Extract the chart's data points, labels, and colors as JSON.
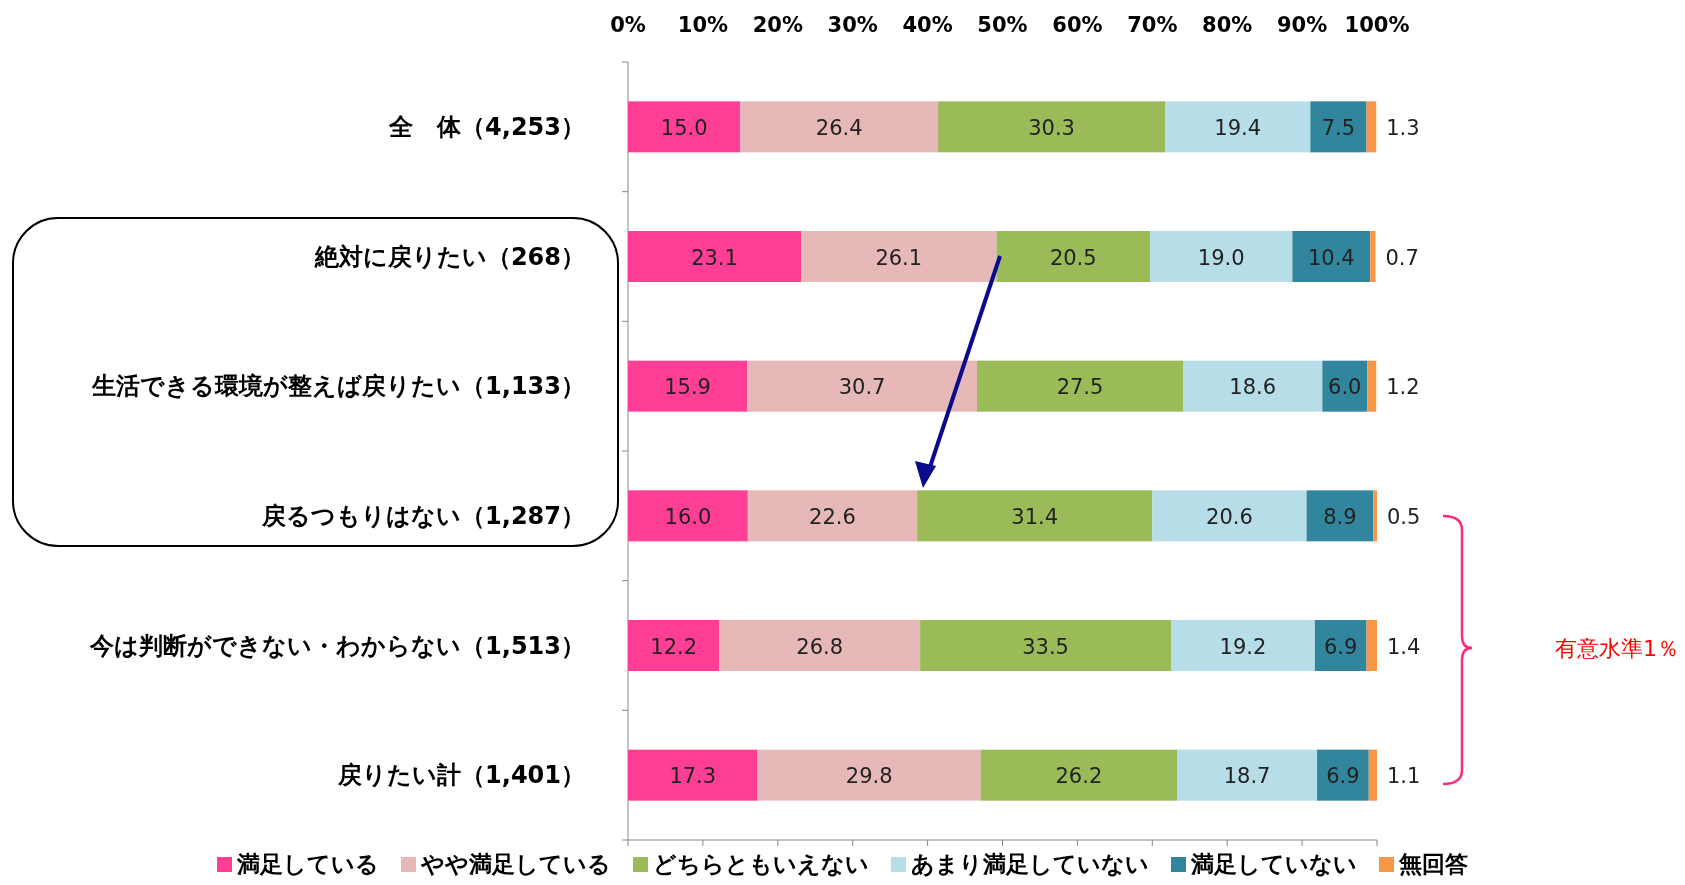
{
  "chart_data": {
    "type": "bar",
    "orientation": "horizontal",
    "stacked": true,
    "data_labels": true,
    "legend": "bottom",
    "grid": false,
    "categories": [
      "全　体（4,253）",
      "絶対に戻りたい（268）",
      "生活できる環境が整えば戻りたい（1,133）",
      "戻るつもりはない（1,287）",
      "今は判断ができない・わからない（1,513）",
      "戻りたい計（1,401）"
    ],
    "xlim": [
      0,
      100
    ],
    "xticks": [
      {
        "value": 0,
        "label": "0%"
      },
      {
        "value": 10,
        "label": "10%"
      },
      {
        "value": 20,
        "label": "20%"
      },
      {
        "value": 30,
        "label": "30%"
      },
      {
        "value": 40,
        "label": "40%"
      },
      {
        "value": 50,
        "label": "50%"
      },
      {
        "value": 60,
        "label": "60%"
      },
      {
        "value": 70,
        "label": "70%"
      },
      {
        "value": 80,
        "label": "80%"
      },
      {
        "value": 90,
        "label": "90%"
      },
      {
        "value": 100,
        "label": "100%"
      }
    ],
    "series": [
      {
        "name": "満足している",
        "color": "#ff3f96",
        "values": [
          15.0,
          23.1,
          15.9,
          16.0,
          12.2,
          17.3
        ],
        "value_labels": [
          "15.0",
          "23.1",
          "15.9",
          "16.0",
          "12.2",
          "17.3"
        ]
      },
      {
        "name": "やや満足している",
        "color": "#e6b9b8",
        "values": [
          26.4,
          26.1,
          30.7,
          22.6,
          26.8,
          29.8
        ],
        "value_labels": [
          "26.4",
          "26.1",
          "30.7",
          "22.6",
          "26.8",
          "29.8"
        ]
      },
      {
        "name": "どちらともいえない",
        "color": "#9bbb59",
        "values": [
          30.3,
          20.5,
          27.5,
          31.4,
          33.5,
          26.2
        ],
        "value_labels": [
          "30.3",
          "20.5",
          "27.5",
          "31.4",
          "33.5",
          "26.2"
        ]
      },
      {
        "name": "あまり満足していない",
        "color": "#b7dee8",
        "values": [
          19.4,
          19.0,
          18.6,
          20.6,
          19.2,
          18.7
        ],
        "value_labels": [
          "19.4",
          "19.0",
          "18.6",
          "20.6",
          "19.2",
          "18.7"
        ]
      },
      {
        "name": "満足していない",
        "color": "#31859c",
        "values": [
          7.5,
          10.4,
          6.0,
          8.9,
          6.9,
          6.9
        ],
        "value_labels": [
          "7.5",
          "10.4",
          "6.0",
          "8.9",
          "6.9",
          "6.9"
        ]
      },
      {
        "name": "無回答",
        "color": "#f79646",
        "values": [
          1.3,
          0.7,
          1.2,
          0.5,
          1.4,
          1.1
        ],
        "value_labels": [
          "1.3",
          "0.7",
          "1.2",
          "0.5",
          "1.4",
          "1.1"
        ]
      }
    ],
    "annotations": [
      "有意水準1％"
    ]
  }
}
